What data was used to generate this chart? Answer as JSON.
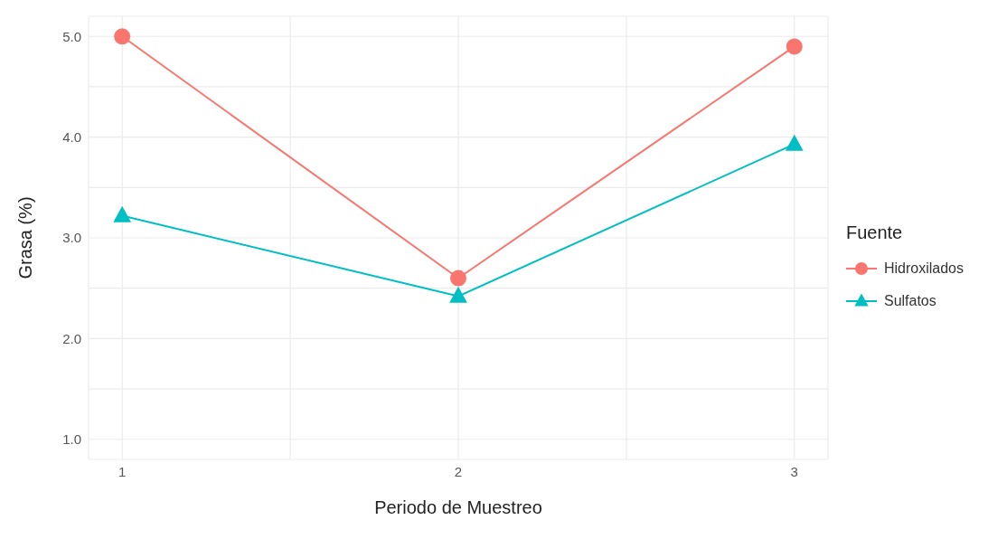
{
  "chart_data": {
    "type": "line",
    "xlabel": "Periodo de Muestreo",
    "ylabel": "Grasa (%)",
    "legend_title": "Fuente",
    "legend": "right",
    "grid": true,
    "x": [
      1,
      2,
      3
    ],
    "series": [
      {
        "name": "Hidroxilados",
        "color": "#f8766d",
        "values": [
          5.0,
          2.6,
          4.9
        ],
        "marker": "circle"
      },
      {
        "name": "Sulfatos",
        "color": "#00bfc4",
        "values": [
          3.22,
          2.42,
          3.93
        ],
        "marker": "triangle"
      }
    ],
    "xlim": [
      0.9,
      3.1
    ],
    "xticks": [
      1,
      {
        "value": 1.5,
        "label": null
      },
      2,
      {
        "value": 2.5,
        "label": null
      },
      3
    ],
    "ylim": [
      0.8,
      5.2
    ],
    "yticks": [
      {
        "value": 1,
        "label": "1.0"
      },
      {
        "value": 1.5,
        "label": null
      },
      {
        "value": 2,
        "label": "2.0"
      },
      {
        "value": 2.5,
        "label": null
      },
      {
        "value": 3,
        "label": "3.0"
      },
      {
        "value": 3.5,
        "label": null
      },
      {
        "value": 4,
        "label": "4.0"
      },
      {
        "value": 4.5,
        "label": null
      },
      {
        "value": 5,
        "label": "5.0"
      }
    ],
    "line_style": "solid"
  }
}
